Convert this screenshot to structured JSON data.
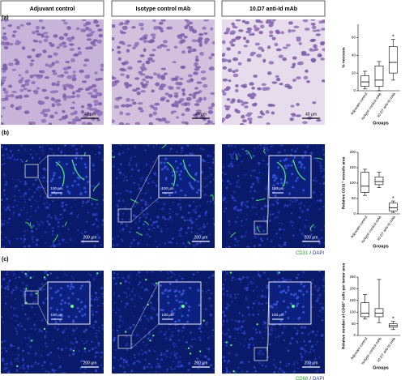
{
  "headers": [
    "Adjuvant control",
    "Isotype control mAb",
    "10.D7 anti-Id mAb"
  ],
  "rows": [
    {
      "label": "(a)",
      "scale_bar": "40 µm"
    },
    {
      "label": "(b)",
      "scale_bar": "200 µm",
      "inset_scale_bar": "100 µm",
      "stain": [
        "CD31",
        "/",
        "DAPI"
      ]
    },
    {
      "label": "(c)",
      "scale_bar": "200 µm",
      "inset_scale_bar": "100 µm",
      "stain": [
        "CD68",
        "/",
        "DAPI"
      ]
    }
  ],
  "chart_data": [
    {
      "type": "box",
      "ylabel": "% necrosis",
      "xlabel": "Groups",
      "categories": [
        "Adjuvant control",
        "Isotype control mAb",
        "10.D7 anti-Id mAb"
      ],
      "boxes": [
        {
          "min": 2,
          "q1": 5,
          "median": 10,
          "q3": 17,
          "max": 22
        },
        {
          "min": 0,
          "q1": 5,
          "median": 12,
          "q3": 28,
          "max": 33
        },
        {
          "min": 12,
          "q1": 20,
          "median": 32,
          "q3": 50,
          "max": 58
        }
      ],
      "annotation": "*",
      "ylim": [
        0,
        75
      ],
      "yticks": [
        0,
        20,
        40,
        60
      ],
      "color": "#000000"
    },
    {
      "type": "box",
      "ylabel": "Relative CD31⁺ vessels area",
      "xlabel": "Groups",
      "categories": [
        "Adjuvant control",
        "Isotype control mAb",
        "10.D7 anti-Id mAb"
      ],
      "boxes": [
        {
          "min": 60,
          "q1": 70,
          "median": 90,
          "q3": 135,
          "max": 145
        },
        {
          "min": 85,
          "q1": 95,
          "median": 105,
          "q3": 120,
          "max": 135
        },
        {
          "min": 5,
          "q1": 10,
          "median": 20,
          "q3": 35,
          "max": 42
        }
      ],
      "annotation": "*",
      "ylim": [
        0,
        200
      ],
      "yticks": [
        0,
        50,
        100,
        150,
        200
      ],
      "color": "#000000"
    },
    {
      "type": "box",
      "ylabel": "Relative number of CD68⁺ cells per tumor area",
      "xlabel": "Groups",
      "categories": [
        "Adjuvant control",
        "Isotype control mAb",
        "10.D7 anti-Id mAb"
      ],
      "boxes": [
        {
          "min": 70,
          "q1": 80,
          "median": 95,
          "q3": 140,
          "max": 175
        },
        {
          "min": 55,
          "q1": 80,
          "median": 95,
          "q3": 115,
          "max": 240
        },
        {
          "min": 25,
          "q1": 35,
          "median": 42,
          "q3": 50,
          "max": 60
        }
      ],
      "annotation": "*",
      "ylim": [
        0,
        250
      ],
      "yticks": [
        0,
        50,
        100,
        150,
        200,
        250
      ],
      "color": "#000000"
    }
  ]
}
